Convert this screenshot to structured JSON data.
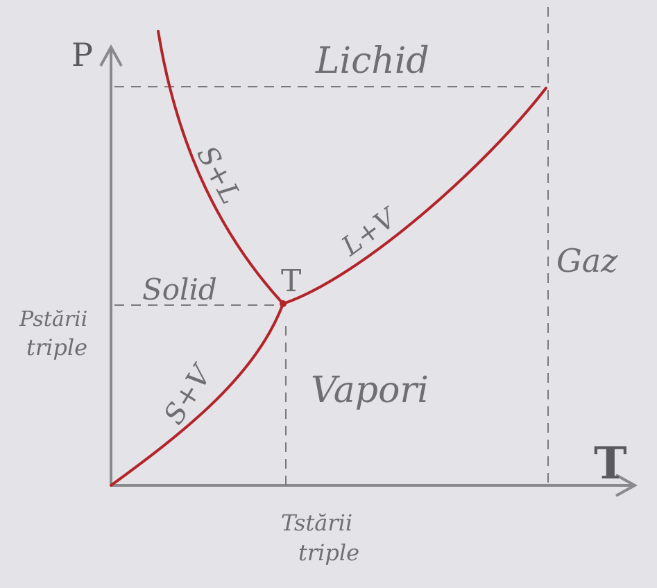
{
  "diagram": {
    "axes": {
      "y_label": "P",
      "x_label": "T"
    },
    "regions": {
      "liquid": "Lichid",
      "solid": "Solid",
      "vapor": "Vapori",
      "gas": "Gaz"
    },
    "curve_labels": {
      "solid_liquid": "S+L",
      "liquid_vapor": "L+V",
      "solid_vapor": "S+V"
    },
    "triple_point_label": "T",
    "triple_pressure_label": {
      "line1": "Pstării",
      "line2": "triple"
    },
    "triple_temperature_label": {
      "line1": "Tstării",
      "line2": "triple"
    },
    "colors": {
      "curve": "#b3242a",
      "axis": "#8a8a8c",
      "dashed": "#7a7a7c",
      "text": "#6f6f72",
      "paper": "#e4e4e8"
    }
  }
}
